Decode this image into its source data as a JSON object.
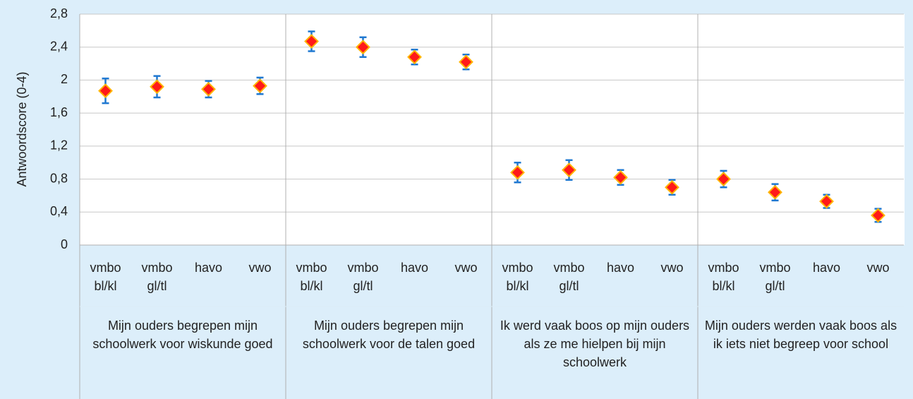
{
  "chart_data": {
    "type": "errorbar",
    "y_label": "Antwoordscore (0-4)",
    "ylim": [
      0,
      2.8
    ],
    "yticks": [
      0,
      {
        "value": 0.4,
        "label": "0,4"
      },
      {
        "value": 0.8,
        "label": "0,8"
      },
      {
        "value": 1.2,
        "label": "1,2"
      },
      {
        "value": 1.6,
        "label": "1,6"
      },
      2,
      {
        "value": 2.4,
        "label": "2,4"
      },
      {
        "value": 2.8,
        "label": "2,8"
      }
    ],
    "grid": true,
    "marker_color": "#ff1a1a",
    "marker_edge_color": "#ffb400",
    "error_color": "#1f78d1",
    "groups": [
      {
        "name": "Mijn ouders begrepen mijn schoolwerk voor wiskunde goed",
        "categories": [
          "vmbo bl/kl",
          "vmbo gl/tl",
          "havo",
          "vwo"
        ],
        "values": [
          1.87,
          1.92,
          1.89,
          1.93
        ],
        "errors": [
          0.15,
          0.13,
          0.1,
          0.1
        ]
      },
      {
        "name": "Mijn ouders begrepen mijn schoolwerk voor de talen goed",
        "categories": [
          "vmbo bl/kl",
          "vmbo gl/tl",
          "havo",
          "vwo"
        ],
        "values": [
          2.47,
          2.4,
          2.28,
          2.22
        ],
        "errors": [
          0.12,
          0.12,
          0.09,
          0.09
        ]
      },
      {
        "name": "Ik werd vaak boos op mijn ouders als ze me hielpen bij mijn schoolwerk",
        "categories": [
          "vmbo bl/kl",
          "vmbo gl/tl",
          "havo",
          "vwo"
        ],
        "values": [
          0.88,
          0.91,
          0.82,
          0.7
        ],
        "errors": [
          0.12,
          0.12,
          0.09,
          0.09
        ]
      },
      {
        "name": "Mijn ouders werden vaak boos als ik iets niet begreep voor school",
        "categories": [
          "vmbo bl/kl",
          "vmbo gl/tl",
          "havo",
          "vwo"
        ],
        "values": [
          0.8,
          0.64,
          0.53,
          0.36
        ],
        "errors": [
          0.1,
          0.1,
          0.08,
          0.08
        ]
      }
    ]
  }
}
